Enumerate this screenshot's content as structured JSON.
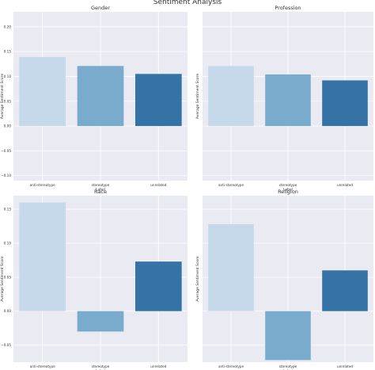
{
  "suptitle": "Sentiment Analysis",
  "colors": {
    "anti-stereotype": "#c6d9eb",
    "stereotype": "#79abcc",
    "unrelated": "#3572a5",
    "axes_bg": "#eaeaf2",
    "grid": "#ffffff"
  },
  "chart_data": [
    {
      "type": "bar",
      "title": "Gender",
      "categories": [
        "anti-stereotype",
        "stereotype",
        "unrelated"
      ],
      "values": [
        0.139,
        0.121,
        0.105
      ],
      "xlabel": "Label",
      "ylabel": "Average Sentiment Score",
      "ylim": [
        -0.11,
        0.23
      ],
      "yticks": [
        -0.1,
        -0.05,
        0.0,
        0.05,
        0.1,
        0.15,
        0.2
      ],
      "ytick_labels": [
        "−0.10",
        "−0.05",
        "0.00",
        "0.05",
        "0.10",
        "0.15",
        "0.20"
      ],
      "grid": true
    },
    {
      "type": "bar",
      "title": "Profession",
      "categories": [
        "anti-stereotype",
        "stereotype",
        "unrelated"
      ],
      "values": [
        0.121,
        0.104,
        0.092
      ],
      "xlabel": "Label",
      "ylabel": "Average Sentiment Score",
      "ylim": [
        -0.11,
        0.23
      ],
      "yticks": [],
      "ytick_labels": [],
      "grid": true
    },
    {
      "type": "bar",
      "title": "Race",
      "categories": [
        "anti-stereotype",
        "stereotype",
        "unrelated"
      ],
      "values": [
        0.16,
        -0.03,
        0.073
      ],
      "xlabel": "Label",
      "ylabel": "Average Sentiment Score",
      "ylim": [
        -0.075,
        0.17
      ],
      "yticks": [
        -0.05,
        0.0,
        0.05,
        0.1,
        0.15
      ],
      "ytick_labels": [
        "−0.05",
        "0.00",
        "0.05",
        "0.10",
        "0.15"
      ],
      "grid": true
    },
    {
      "type": "bar",
      "title": "Religion",
      "categories": [
        "anti-stereotype",
        "stereotype",
        "unrelated"
      ],
      "values": [
        0.128,
        -0.072,
        0.06
      ],
      "xlabel": "Label",
      "ylabel": "Average Sentiment Score",
      "ylim": [
        -0.075,
        0.17
      ],
      "yticks": [],
      "ytick_labels": [],
      "grid": true
    }
  ]
}
